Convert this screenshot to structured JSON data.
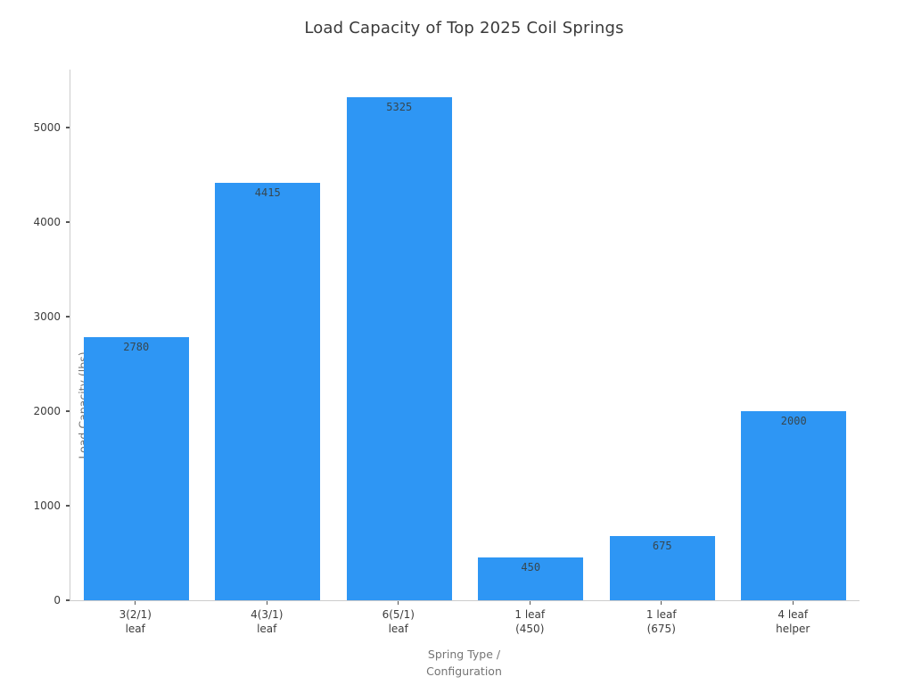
{
  "chart_data": {
    "type": "bar",
    "title": "Load Capacity of Top 2025 Coil Springs",
    "categories": [
      [
        "3(2/1)",
        "leaf"
      ],
      [
        "4(3/1)",
        "leaf"
      ],
      [
        "6(5/1)",
        "leaf"
      ],
      [
        "1 leaf",
        "(450)"
      ],
      [
        "1 leaf",
        "(675)"
      ],
      [
        "4 leaf",
        "helper"
      ]
    ],
    "values": [
      2780,
      4415,
      5325,
      450,
      675,
      2000
    ],
    "value_labels": [
      "2780",
      "4415",
      "5325",
      "450",
      "675",
      "2000"
    ],
    "xlabel": [
      "Spring Type /",
      "Configuration"
    ],
    "ylabel": "Load Capacity (lbs)",
    "ylim": [
      0,
      5613
    ],
    "yticks": [
      0,
      1000,
      2000,
      3000,
      4000,
      5000
    ],
    "grid": false,
    "legend": null,
    "colors": {
      "bar": "#2e96f4",
      "value_label": "#37474f",
      "axis_line": "#cccccc",
      "tick_mark": "#555555",
      "tick_label": "#3c3c3c",
      "axis_title": "#757575",
      "title": "#3a3a3a",
      "background": "#ffffff"
    }
  }
}
